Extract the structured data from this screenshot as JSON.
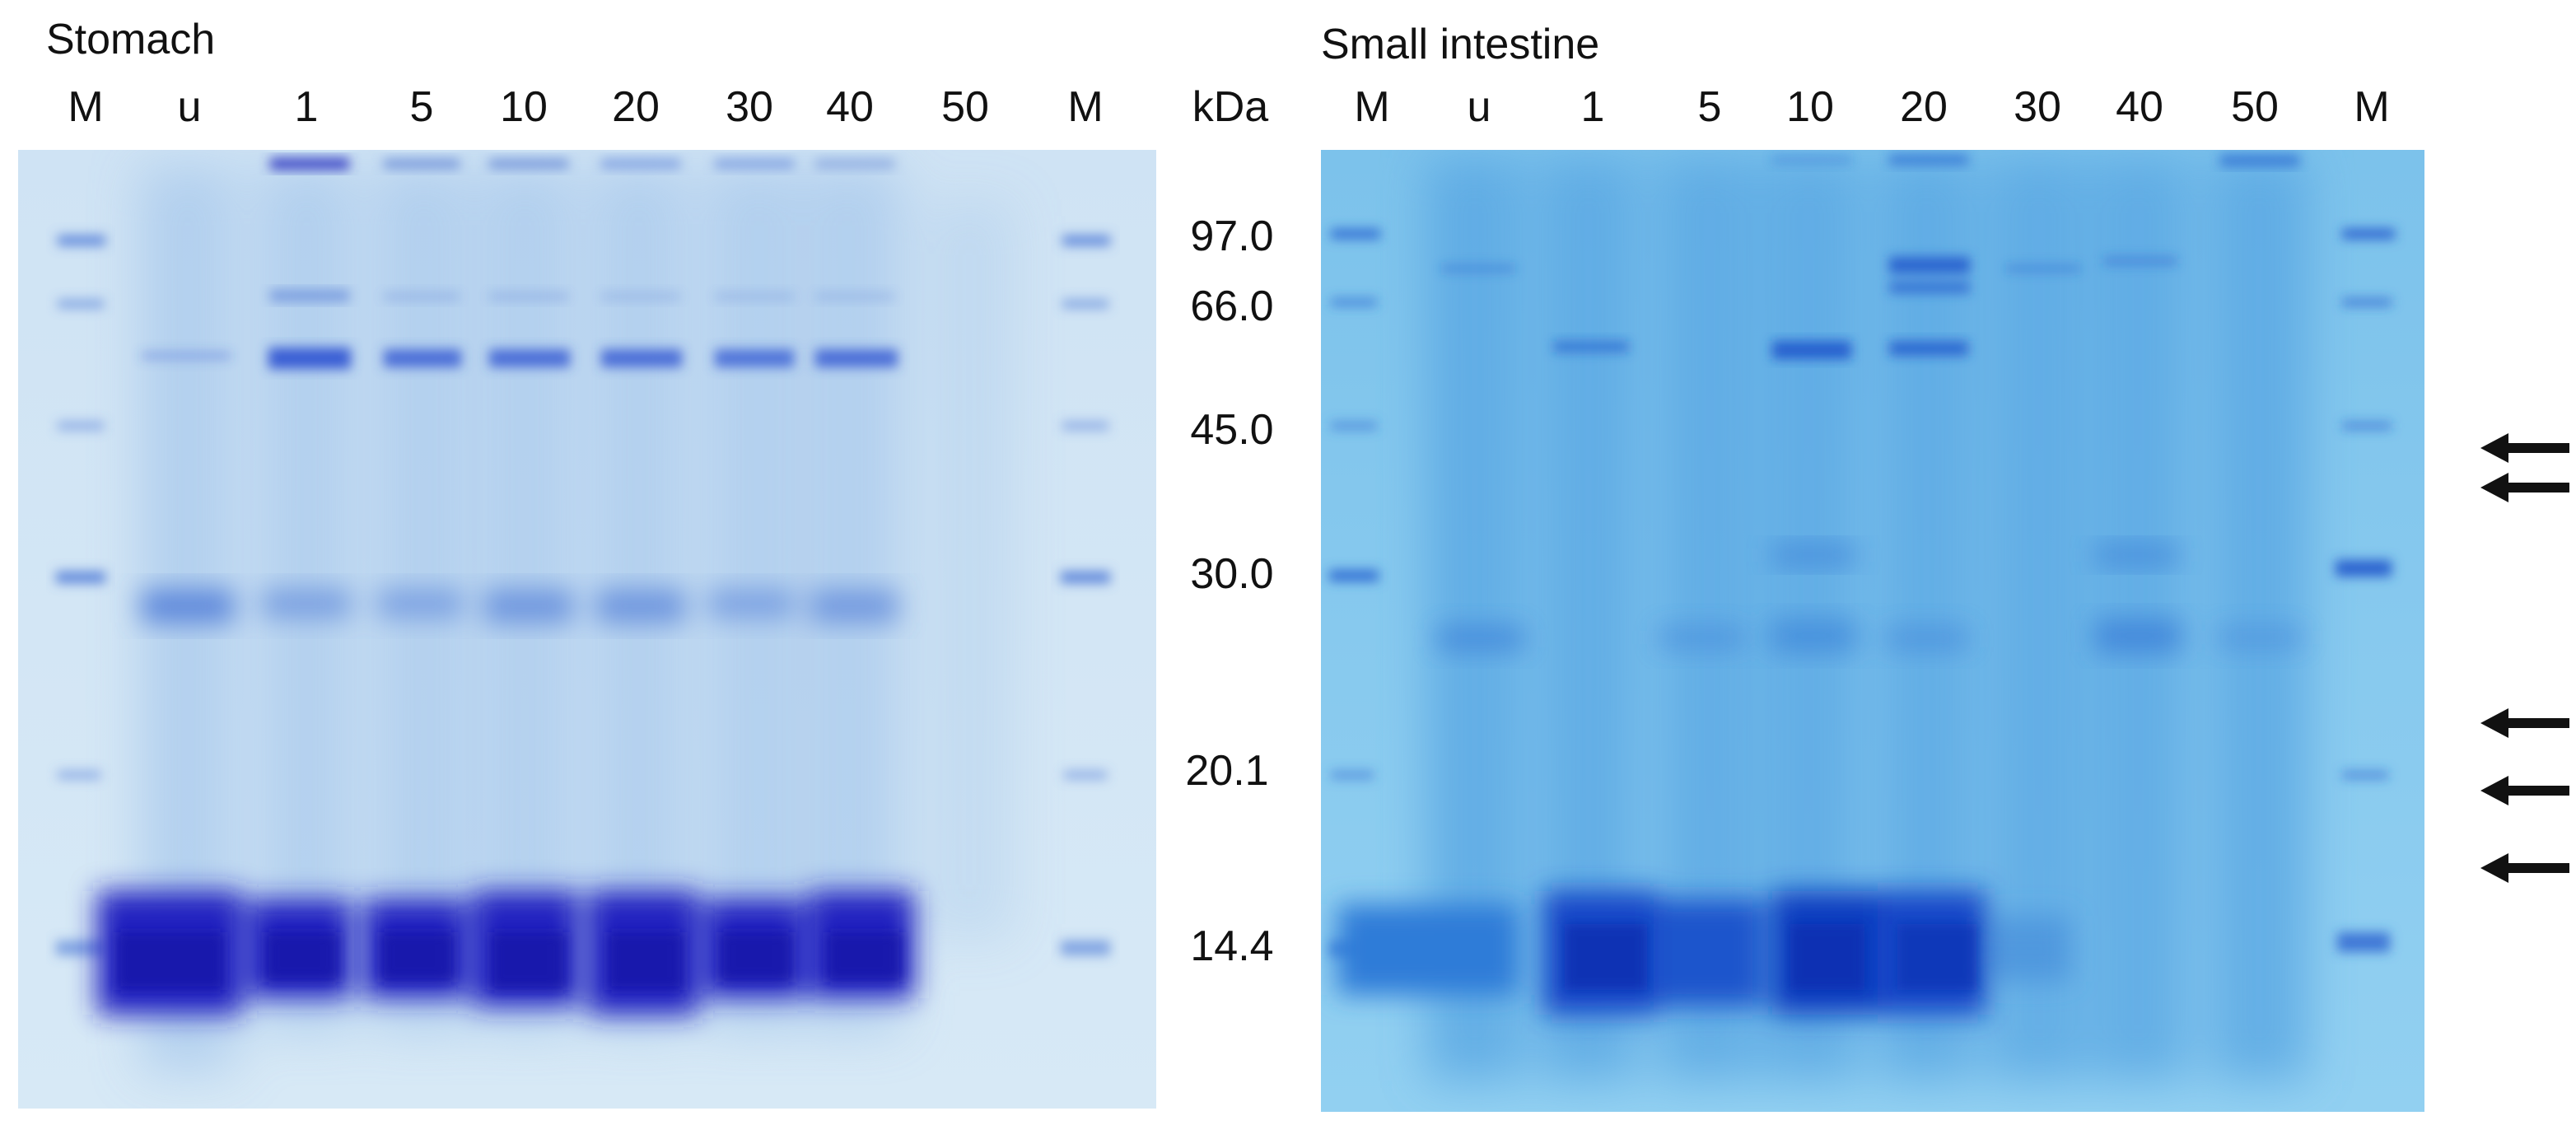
{
  "panels": [
    {
      "title": "Stomach",
      "lanes": [
        "M",
        "u",
        "1",
        "5",
        "10",
        "20",
        "30",
        "40",
        "50",
        "M"
      ],
      "gel_colors": {
        "background": "#c8dff2",
        "band_light": "#8fb8e6",
        "band_mid": "#4c7fd8",
        "band_dark": "#1f1fb8"
      }
    },
    {
      "title": "Small intestine",
      "lanes": [
        "M",
        "u",
        "1",
        "5",
        "10",
        "20",
        "30",
        "40",
        "50",
        "M"
      ],
      "gel_colors": {
        "background": "#7ec4ec",
        "band_light": "#5aa6e2",
        "band_mid": "#2f7fd6",
        "band_dark": "#1240c4"
      }
    }
  ],
  "marker": {
    "unit": "kDa",
    "sizes": [
      "97.0",
      "66.0",
      "45.0",
      "30.0",
      "20.1",
      "14.4"
    ]
  },
  "arrows": {
    "count": 5,
    "icon": "left-arrow-icon",
    "color": "#111111"
  }
}
